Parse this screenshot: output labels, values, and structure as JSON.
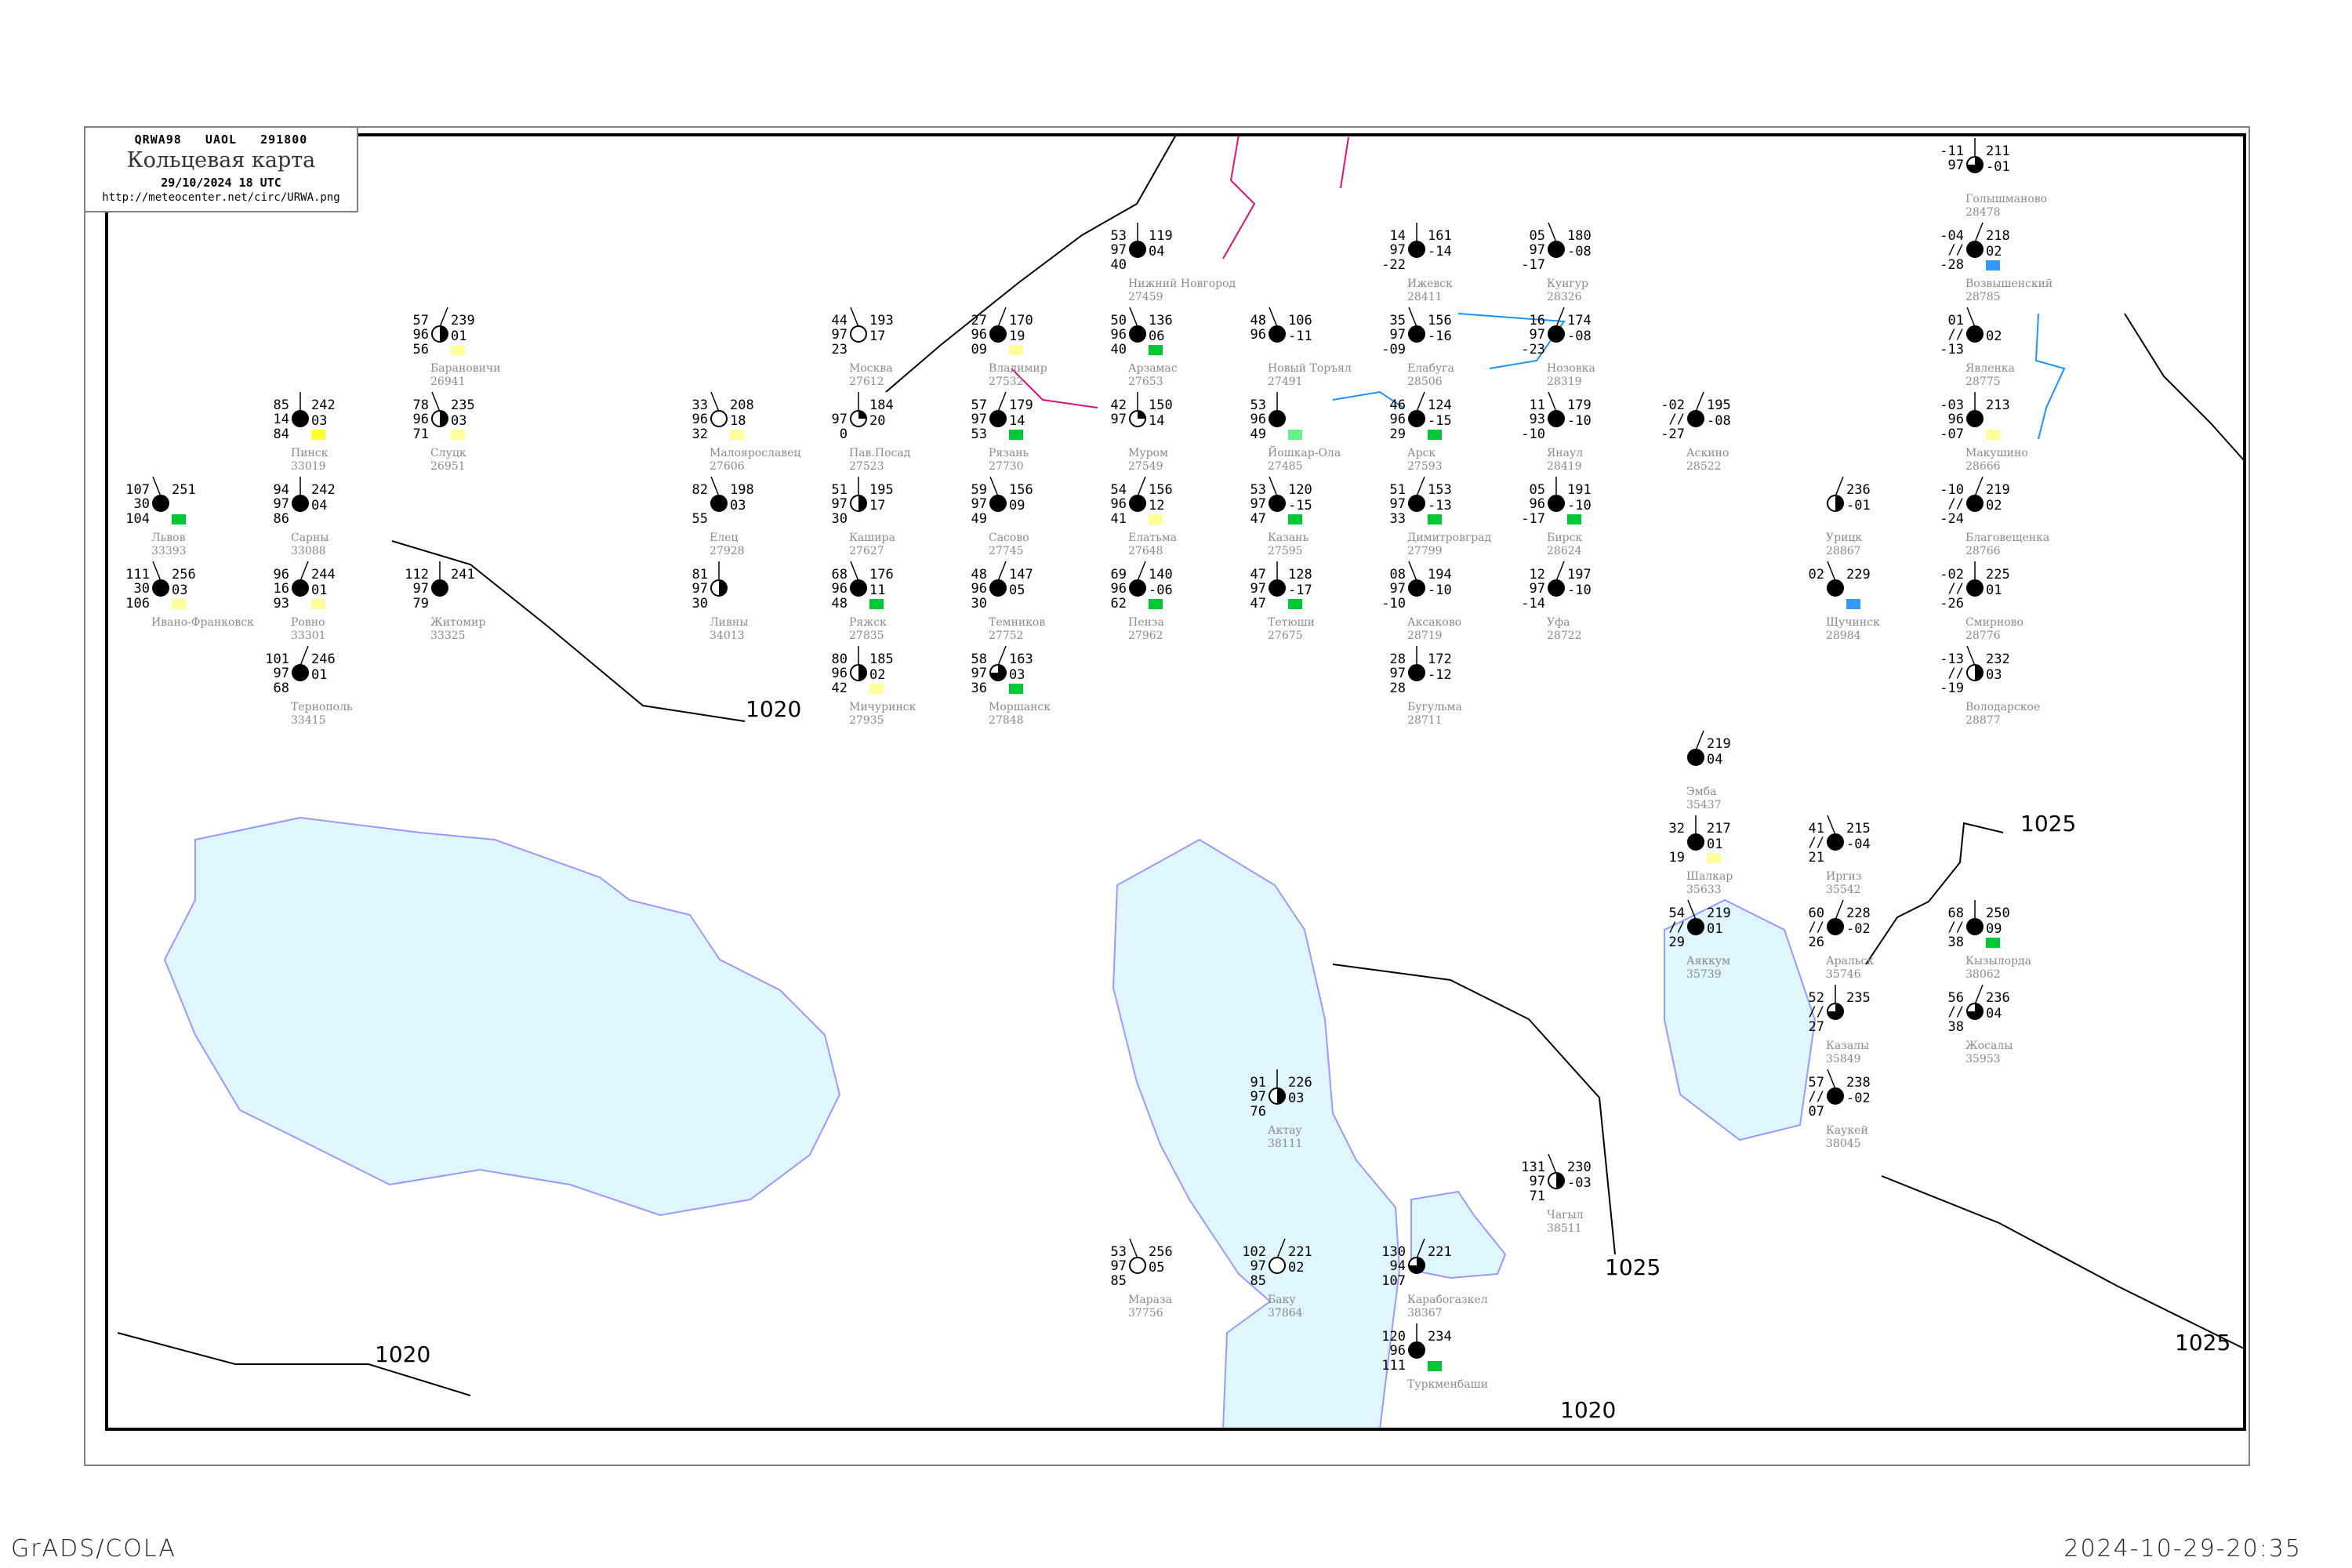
{
  "header": {
    "code_line": "QRWA98   UAOL   291800",
    "title": "Кольцевая карта",
    "date": "29/10/2024 18 UTC",
    "url": "http://meteocenter.net/circ/URWA.png"
  },
  "footer": {
    "left": "GrADS/COLA",
    "right": "2024-10-29-20:35"
  },
  "colors": {
    "water": "#e0f6fd",
    "coast": "#9999ff",
    "river": "#1e90ff",
    "isobar": "#000000",
    "frame": "#000000",
    "station_name": "#8a8a8a",
    "marker_green": "#00c832",
    "marker_lightgreen": "#66ee88",
    "marker_yellow": "#ffff99",
    "marker_brightyellow": "#ffff33",
    "marker_blue": "#3399ff",
    "border_magenta": "#e0107a"
  },
  "isobar_labels": [
    "1020",
    "1020",
    "1020",
    "1025",
    "1025",
    "1025"
  ],
  "stations": [
    {
      "name": "Москва",
      "id": "27612",
      "tl": "44",
      "ml": "97",
      "bl": "23",
      "tr": "193",
      "mr": "17",
      "cover": 0,
      "marker": ""
    },
    {
      "name": "Пав.Посад",
      "id": "27523",
      "tl": "",
      "ml": "97",
      "bl": "0",
      "tr": "184",
      "mr": "20",
      "cover": 2,
      "marker": ""
    },
    {
      "name": "Владимир",
      "id": "27532",
      "tl": "27",
      "ml": "96",
      "bl": "09",
      "tr": "170",
      "mr": "19",
      "cover": 8,
      "marker": "yellow"
    },
    {
      "name": "Малоярославец",
      "id": "27606",
      "tl": "33",
      "ml": "96",
      "bl": "32",
      "tr": "208",
      "mr": "18",
      "cover": 0,
      "marker": "yellow"
    },
    {
      "name": "Кашира",
      "id": "27627",
      "tl": "51",
      "ml": "97",
      "bl": "30",
      "tr": "195",
      "mr": "17",
      "cover": 4,
      "marker": ""
    },
    {
      "name": "Рязань",
      "id": "27730",
      "tl": "57",
      "ml": "97",
      "bl": "53",
      "tr": "179",
      "mr": "14",
      "cover": 8,
      "marker": "green"
    },
    {
      "name": "Сасово",
      "id": "27745",
      "tl": "59",
      "ml": "97",
      "bl": "49",
      "tr": "156",
      "mr": "09",
      "cover": 8,
      "marker": ""
    },
    {
      "name": "Муром",
      "id": "27549",
      "tl": "42",
      "ml": "97",
      "bl": "",
      "tr": "150",
      "mr": "14",
      "cover": 2,
      "marker": ""
    },
    {
      "name": "Елатьма",
      "id": "27648",
      "tl": "54",
      "ml": "96",
      "bl": "41",
      "tr": "156",
      "mr": "12",
      "cover": 8,
      "marker": "yellow"
    },
    {
      "name": "Арзамас",
      "id": "27653",
      "tl": "50",
      "ml": "96",
      "bl": "40",
      "tr": "136",
      "mr": "06",
      "cover": 8,
      "marker": "green"
    },
    {
      "name": "Нижний Новгород",
      "id": "27459",
      "tl": "53",
      "ml": "97",
      "bl": "40",
      "tr": "119",
      "mr": "04",
      "cover": 8,
      "marker": ""
    },
    {
      "name": "Темников",
      "id": "27752",
      "tl": "48",
      "ml": "96",
      "bl": "30",
      "tr": "147",
      "mr": "05",
      "cover": 8,
      "marker": ""
    },
    {
      "name": "Ряжск",
      "id": "27835",
      "tl": "68",
      "ml": "96",
      "bl": "48",
      "tr": "176",
      "mr": "11",
      "cover": 8,
      "marker": "green"
    },
    {
      "name": "Мичуринск",
      "id": "27935",
      "tl": "80",
      "ml": "96",
      "bl": "42",
      "tr": "185",
      "mr": "02",
      "cover": 4,
      "marker": "yellow"
    },
    {
      "name": "Моршанск",
      "id": "27848",
      "tl": "58",
      "ml": "97",
      "bl": "36",
      "tr": "163",
      "mr": "03",
      "cover": 6,
      "marker": "green"
    },
    {
      "name": "Елец",
      "id": "27928",
      "tl": "82",
      "ml": "",
      "bl": "55",
      "tr": "198",
      "mr": "03",
      "cover": 8,
      "marker": ""
    },
    {
      "name": "Ливны",
      "id": "34013",
      "tl": "81",
      "ml": "97",
      "bl": "30",
      "tr": "",
      "mr": "",
      "cover": 4,
      "marker": ""
    },
    {
      "name": "Пенза",
      "id": "27962",
      "tl": "69",
      "ml": "96",
      "bl": "62",
      "tr": "140",
      "mr": "-06",
      "cover": 8,
      "marker": "green"
    },
    {
      "name": "Иргиз",
      "id": "35542",
      "tl": "41",
      "ml": "//",
      "bl": "21",
      "tr": "215",
      "mr": "-04",
      "cover": 8,
      "marker": ""
    },
    {
      "name": "Шалкар",
      "id": "35633",
      "tl": "32",
      "ml": "",
      "bl": "19",
      "tr": "217",
      "mr": "01",
      "cover": 8,
      "marker": "yellow"
    },
    {
      "name": "Аральск",
      "id": "35746",
      "tl": "60",
      "ml": "//",
      "bl": "26",
      "tr": "228",
      "mr": "-02",
      "cover": 8,
      "marker": ""
    },
    {
      "name": "Аяккум",
      "id": "35739",
      "tl": "54",
      "ml": "//",
      "bl": "29",
      "tr": "219",
      "mr": "01",
      "cover": 8,
      "marker": ""
    },
    {
      "name": "Казалы",
      "id": "35849",
      "tl": "52",
      "ml": "//",
      "bl": "27",
      "tr": "235",
      "mr": "",
      "cover": 6,
      "marker": ""
    },
    {
      "name": "Жосалы",
      "id": "35953",
      "tl": "56",
      "ml": "//",
      "bl": "38",
      "tr": "236",
      "mr": "04",
      "cover": 6,
      "marker": ""
    },
    {
      "name": "Каукей",
      "id": "38045",
      "tl": "57",
      "ml": "//",
      "bl": "07",
      "tr": "238",
      "mr": "-02",
      "cover": 8,
      "marker": ""
    },
    {
      "name": "Кызылорда",
      "id": "38062",
      "tl": "68",
      "ml": "//",
      "bl": "38",
      "tr": "250",
      "mr": "09",
      "cover": 8,
      "marker": "green"
    },
    {
      "name": "Эмба",
      "id": "35437",
      "tl": "",
      "ml": "",
      "bl": "",
      "tr": "219",
      "mr": "04",
      "cover": 8,
      "marker": ""
    },
    {
      "name": "Новый Торъял",
      "id": "27491",
      "tl": "48",
      "ml": "96",
      "bl": "",
      "tr": "106",
      "mr": "-11",
      "cover": 8,
      "marker": ""
    },
    {
      "name": "Йошкар-Ола",
      "id": "27485",
      "tl": "53",
      "ml": "96",
      "bl": "49",
      "tr": "",
      "mr": "",
      "cover": 8,
      "marker": "lightgreen"
    },
    {
      "name": "Арск",
      "id": "27593",
      "tl": "46",
      "ml": "96",
      "bl": "29",
      "tr": "124",
      "mr": "-15",
      "cover": 8,
      "marker": "green"
    },
    {
      "name": "Казань",
      "id": "27595",
      "tl": "53",
      "ml": "97",
      "bl": "47",
      "tr": "120",
      "mr": "-15",
      "cover": 8,
      "marker": "green"
    },
    {
      "name": "Тетюши",
      "id": "27675",
      "tl": "47",
      "ml": "97",
      "bl": "47",
      "tr": "128",
      "mr": "-17",
      "cover": 8,
      "marker": "green"
    },
    {
      "name": "Димитровград",
      "id": "27799",
      "tl": "51",
      "ml": "97",
      "bl": "33",
      "tr": "153",
      "mr": "-13",
      "cover": 8,
      "marker": "green"
    },
    {
      "name": "Елабуга",
      "id": "28506",
      "tl": "35",
      "ml": "97",
      "bl": "-09",
      "tr": "156",
      "mr": "-16",
      "cover": 8,
      "marker": ""
    },
    {
      "name": "Ижевск",
      "id": "28411",
      "tl": "14",
      "ml": "97",
      "bl": "-22",
      "tr": "161",
      "mr": "-14",
      "cover": 8,
      "marker": ""
    },
    {
      "name": "Нозовка",
      "id": "28319",
      "tl": "16",
      "ml": "97",
      "bl": "-23",
      "tr": "174",
      "mr": "-08",
      "cover": 8,
      "marker": ""
    },
    {
      "name": "Янаул",
      "id": "28419",
      "tl": "11",
      "ml": "93",
      "bl": "-10",
      "tr": "179",
      "mr": "-10",
      "cover": 8,
      "marker": ""
    },
    {
      "name": "Бирск",
      "id": "28624",
      "tl": "05",
      "ml": "96",
      "bl": "-17",
      "tr": "191",
      "mr": "-10",
      "cover": 8,
      "marker": "green"
    },
    {
      "name": "Уфа",
      "id": "28722",
      "tl": "12",
      "ml": "97",
      "bl": "-14",
      "tr": "197",
      "mr": "-10",
      "cover": 8,
      "marker": ""
    },
    {
      "name": "Аксаково",
      "id": "28719",
      "tl": "08",
      "ml": "97",
      "bl": "-10",
      "tr": "194",
      "mr": "-10",
      "cover": 8,
      "marker": ""
    },
    {
      "name": "Бугульма",
      "id": "28711",
      "tl": "28",
      "ml": "97",
      "bl": "28",
      "tr": "172",
      "mr": "-12",
      "cover": 8,
      "marker": ""
    },
    {
      "name": "Аскино",
      "id": "28522",
      "tl": "-02",
      "ml": "//",
      "bl": "-27",
      "tr": "195",
      "mr": "-08",
      "cover": 8,
      "marker": ""
    },
    {
      "name": "Кунгур",
      "id": "28326",
      "tl": "05",
      "ml": "97",
      "bl": "-17",
      "tr": "180",
      "mr": "-08",
      "cover": 8,
      "marker": ""
    },
    {
      "name": "Пинск",
      "id": "33019",
      "tl": "85",
      "ml": "14",
      "bl": "84",
      "tr": "242",
      "mr": "03",
      "cover": 8,
      "marker": "brightyellow"
    },
    {
      "name": "Барановичи",
      "id": "26941",
      "tl": "57",
      "ml": "96",
      "bl": "56",
      "tr": "239",
      "mr": "01",
      "cover": 4,
      "marker": "yellow"
    },
    {
      "name": "Слуцк",
      "id": "26951",
      "tl": "78",
      "ml": "96",
      "bl": "71",
      "tr": "235",
      "mr": "03",
      "cover": 4,
      "marker": "yellow"
    },
    {
      "name": "Сарны",
      "id": "33088",
      "tl": "94",
      "ml": "97",
      "bl": "86",
      "tr": "242",
      "mr": "04",
      "cover": 8,
      "marker": ""
    },
    {
      "name": "Ровно",
      "id": "33301",
      "tl": "96",
      "ml": "16",
      "bl": "93",
      "tr": "244",
      "mr": "01",
      "cover": 8,
      "marker": "yellow"
    },
    {
      "name": "Львов",
      "id": "33393",
      "tl": "107",
      "ml": "30",
      "bl": "104",
      "tr": "251",
      "mr": "",
      "cover": 8,
      "marker": "green"
    },
    {
      "name": "Житомир",
      "id": "33325",
      "tl": "112",
      "ml": "97",
      "bl": "79",
      "tr": "241",
      "mr": "",
      "cover": 8,
      "marker": ""
    },
    {
      "name": "Тернополь",
      "id": "33415",
      "tl": "101",
      "ml": "97",
      "bl": "68",
      "tr": "246",
      "mr": "01",
      "cover": 8,
      "marker": ""
    },
    {
      "name": "Ивано-Франковск",
      "id": "",
      "tl": "111",
      "ml": "30",
      "bl": "106",
      "tr": "256",
      "mr": "03",
      "cover": 8,
      "marker": "yellow"
    },
    {
      "name": "Актау",
      "id": "38111",
      "tl": "91",
      "ml": "97",
      "bl": "76",
      "tr": "226",
      "mr": "03",
      "cover": 4,
      "marker": ""
    },
    {
      "name": "Карабогазкел",
      "id": "38367",
      "tl": "130",
      "ml": "94",
      "bl": "107",
      "tr": "221",
      "mr": "",
      "cover": 6,
      "marker": ""
    },
    {
      "name": "Чагыл",
      "id": "38511",
      "tl": "131",
      "ml": "97",
      "bl": "71",
      "tr": "230",
      "mr": "-03",
      "cover": 4,
      "marker": ""
    },
    {
      "name": "Туркменбаши",
      "id": "",
      "tl": "120",
      "ml": "96",
      "bl": "111",
      "tr": "234",
      "mr": "",
      "cover": 8,
      "marker": "green"
    },
    {
      "name": "Баку",
      "id": "37864",
      "tl": "102",
      "ml": "97",
      "bl": "85",
      "tr": "221",
      "mr": "02",
      "cover": 0,
      "marker": ""
    },
    {
      "name": "Мараза",
      "id": "37756",
      "tl": "53",
      "ml": "97",
      "bl": "85",
      "tr": "256",
      "mr": "05",
      "cover": 0,
      "marker": ""
    },
    {
      "name": "Макушино",
      "id": "28666",
      "tl": "-03",
      "ml": "96",
      "bl": "-07",
      "tr": "213",
      "mr": "",
      "cover": 8,
      "marker": "yellow"
    },
    {
      "name": "Благовещенка",
      "id": "28766",
      "tl": "-10",
      "ml": "//",
      "bl": "-24",
      "tr": "219",
      "mr": "02",
      "cover": 8,
      "marker": ""
    },
    {
      "name": "Явленка",
      "id": "28775",
      "tl": "01",
      "ml": "//",
      "bl": "-13",
      "tr": "",
      "mr": "02",
      "cover": 8,
      "marker": ""
    },
    {
      "name": "Смирново",
      "id": "28776",
      "tl": "-02",
      "ml": "//",
      "bl": "-26",
      "tr": "225",
      "mr": "01",
      "cover": 8,
      "marker": ""
    },
    {
      "name": "Возвышенский",
      "id": "28785",
      "tl": "-04",
      "ml": "//",
      "bl": "-28",
      "tr": "218",
      "mr": "02",
      "cover": 8,
      "marker": "blue"
    },
    {
      "name": "Володарское",
      "id": "28877",
      "tl": "-13",
      "ml": "//",
      "bl": "-19",
      "tr": "232",
      "mr": "03",
      "cover": 4,
      "marker": ""
    },
    {
      "name": "Голышманово",
      "id": "28478",
      "tl": "-11",
      "ml": "97",
      "bl": "",
      "tr": "211",
      "mr": "-01",
      "cover": 6,
      "marker": ""
    },
    {
      "name": "Урицк",
      "id": "28867",
      "tl": "",
      "ml": "",
      "bl": "",
      "tr": "236",
      "mr": "-01",
      "cover": 4,
      "marker": ""
    },
    {
      "name": "Щучинск",
      "id": "28984",
      "tl": "02",
      "ml": "",
      "bl": "",
      "tr": "229",
      "mr": "",
      "cover": 8,
      "marker": "blue"
    }
  ]
}
